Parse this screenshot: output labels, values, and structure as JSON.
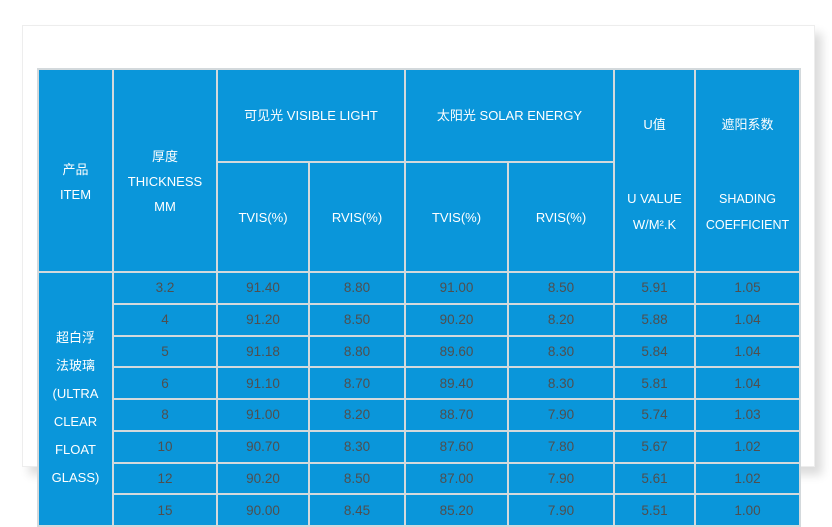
{
  "theme": {
    "accent_blue": "#0a96da",
    "grid_color": "#d3d9dc",
    "header_text_color": "#ffffff",
    "data_text_color": "#4f4f4f",
    "card_bg": "#ffffff"
  },
  "table": {
    "header": {
      "item": "产品\nITEM",
      "thickness": "厚度\nTHICKNESS\nMM",
      "visible_light": "可见光  VISIBLE LIGHT",
      "solar_energy": "太阳光  SOLAR ENERGY",
      "tvis_visible": "TVIS(%)",
      "rvis_visible": "RVIS(%)",
      "tvis_solar": "TVIS(%)",
      "rvis_solar": "RVIS(%)",
      "u_value_zh": "U值",
      "u_value_en": "U VALUE\nW/M².K",
      "shading_zh": "遮阳系数",
      "shading_en": "SHADING\nCOEFFICIENT"
    },
    "item_label": "超白浮\n法玻璃\n(ULTRA\nCLEAR\nFLOAT\nGLASS)",
    "columns_order": [
      "mm",
      "vl_tvis",
      "vl_rvis",
      "se_tvis",
      "se_rvis",
      "u",
      "sc"
    ],
    "rows": [
      {
        "mm": "3.2",
        "vl_tvis": "91.40",
        "vl_rvis": "8.80",
        "se_tvis": "91.00",
        "se_rvis": "8.50",
        "u": "5.91",
        "sc": "1.05"
      },
      {
        "mm": "4",
        "vl_tvis": "91.20",
        "vl_rvis": "8.50",
        "se_tvis": "90.20",
        "se_rvis": "8.20",
        "u": "5.88",
        "sc": "1.04"
      },
      {
        "mm": "5",
        "vl_tvis": "91.18",
        "vl_rvis": "8.80",
        "se_tvis": "89.60",
        "se_rvis": "8.30",
        "u": "5.84",
        "sc": "1.04"
      },
      {
        "mm": "6",
        "vl_tvis": "91.10",
        "vl_rvis": "8.70",
        "se_tvis": "89.40",
        "se_rvis": "8.30",
        "u": "5.81",
        "sc": "1.04"
      },
      {
        "mm": "8",
        "vl_tvis": "91.00",
        "vl_rvis": "8.20",
        "se_tvis": "88.70",
        "se_rvis": "7.90",
        "u": "5.74",
        "sc": "1.03"
      },
      {
        "mm": "10",
        "vl_tvis": "90.70",
        "vl_rvis": "8.30",
        "se_tvis": "87.60",
        "se_rvis": "7.80",
        "u": "5.67",
        "sc": "1.02"
      },
      {
        "mm": "12",
        "vl_tvis": "90.20",
        "vl_rvis": "8.50",
        "se_tvis": "87.00",
        "se_rvis": "7.90",
        "u": "5.61",
        "sc": "1.02"
      },
      {
        "mm": "15",
        "vl_tvis": "90.00",
        "vl_rvis": "8.45",
        "se_tvis": "85.20",
        "se_rvis": "7.90",
        "u": "5.51",
        "sc": "1.00"
      }
    ]
  }
}
